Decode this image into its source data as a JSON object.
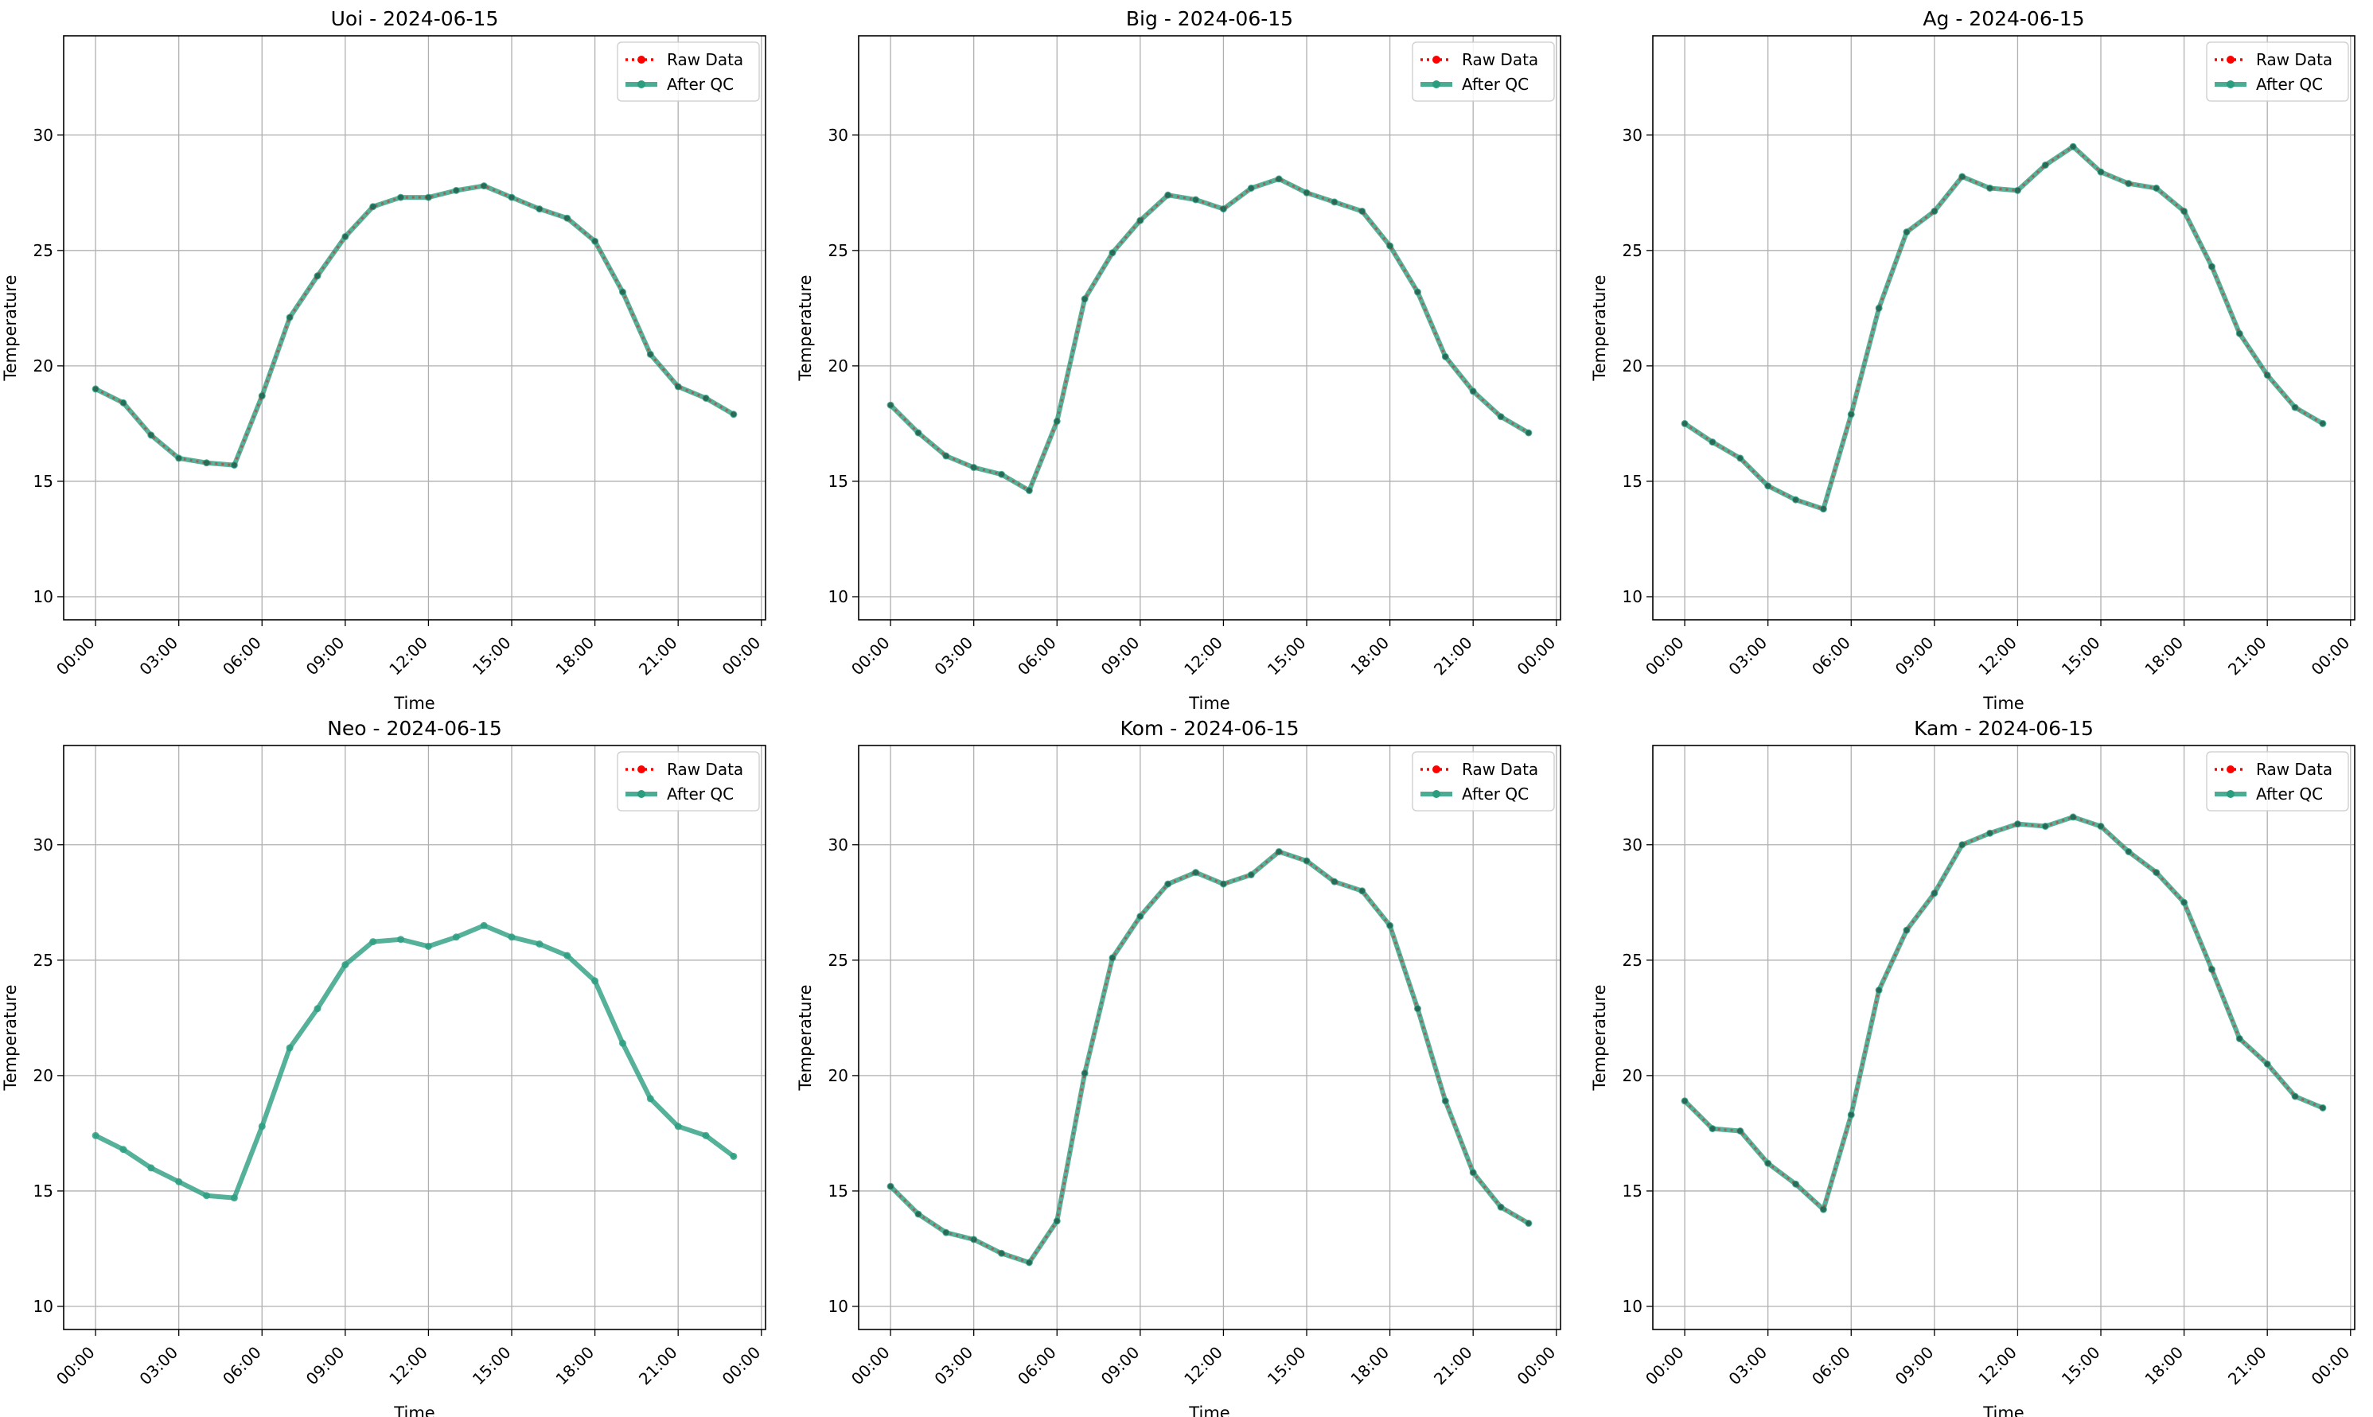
{
  "figure": {
    "colors": {
      "raw": "#ff0000",
      "after_qc": "#2a9d7f",
      "grid": "#b0b0b0",
      "axes": "#000000"
    }
  },
  "chart_data": [
    {
      "type": "line",
      "title": "Uoi - 2024-06-15",
      "xlabel": "Time",
      "ylabel": "Temperature",
      "xlim": [
        -1.15,
        24.15
      ],
      "ylim": [
        9,
        34.3
      ],
      "xticks": [
        0,
        3,
        6,
        9,
        12,
        15,
        18,
        21,
        24
      ],
      "xtick_labels": [
        "00:00",
        "03:00",
        "06:00",
        "09:00",
        "12:00",
        "15:00",
        "18:00",
        "21:00",
        "00:00"
      ],
      "yticks": [
        10,
        15,
        20,
        25,
        30
      ],
      "grid": true,
      "legend": "top-right",
      "x": [
        0,
        1,
        2,
        3,
        4,
        5,
        6,
        7,
        8,
        9,
        10,
        11,
        12,
        13,
        14,
        15,
        16,
        17,
        18,
        19,
        20,
        21,
        22,
        23
      ],
      "series": [
        {
          "name": "Raw Data",
          "style": "dotted",
          "values": [
            19.0,
            18.4,
            17.0,
            16.0,
            15.8,
            15.7,
            18.7,
            22.1,
            23.9,
            25.6,
            26.9,
            27.3,
            27.3,
            27.6,
            27.8,
            27.3,
            26.8,
            26.4,
            25.4,
            23.2,
            20.5,
            19.1,
            18.6,
            17.9
          ]
        },
        {
          "name": "After QC",
          "style": "solid",
          "values": [
            19.0,
            18.4,
            17.0,
            16.0,
            15.8,
            15.7,
            18.7,
            22.1,
            23.9,
            25.6,
            26.9,
            27.3,
            27.3,
            27.6,
            27.8,
            27.3,
            26.8,
            26.4,
            25.4,
            23.2,
            20.5,
            19.1,
            18.6,
            17.9
          ]
        }
      ]
    },
    {
      "type": "line",
      "title": "Big - 2024-06-15",
      "xlabel": "Time",
      "ylabel": "Temperature",
      "xlim": [
        -1.15,
        24.15
      ],
      "ylim": [
        9,
        34.3
      ],
      "xticks": [
        0,
        3,
        6,
        9,
        12,
        15,
        18,
        21,
        24
      ],
      "xtick_labels": [
        "00:00",
        "03:00",
        "06:00",
        "09:00",
        "12:00",
        "15:00",
        "18:00",
        "21:00",
        "00:00"
      ],
      "yticks": [
        10,
        15,
        20,
        25,
        30
      ],
      "grid": true,
      "legend": "top-right",
      "x": [
        0,
        1,
        2,
        3,
        4,
        5,
        6,
        7,
        8,
        9,
        10,
        11,
        12,
        13,
        14,
        15,
        16,
        17,
        18,
        19,
        20,
        21,
        22,
        23
      ],
      "series": [
        {
          "name": "Raw Data",
          "style": "dotted",
          "values": [
            18.3,
            17.1,
            16.1,
            15.6,
            15.3,
            14.6,
            17.6,
            22.9,
            24.9,
            26.3,
            27.4,
            27.2,
            26.8,
            27.7,
            28.1,
            27.5,
            27.1,
            26.7,
            25.2,
            23.2,
            20.4,
            18.9,
            17.8,
            17.1
          ]
        },
        {
          "name": "After QC",
          "style": "solid",
          "values": [
            18.3,
            17.1,
            16.1,
            15.6,
            15.3,
            14.6,
            17.6,
            22.9,
            24.9,
            26.3,
            27.4,
            27.2,
            26.8,
            27.7,
            28.1,
            27.5,
            27.1,
            26.7,
            25.2,
            23.2,
            20.4,
            18.9,
            17.8,
            17.1
          ]
        }
      ]
    },
    {
      "type": "line",
      "title": "Ag - 2024-06-15",
      "xlabel": "Time",
      "ylabel": "Temperature",
      "xlim": [
        -1.15,
        24.15
      ],
      "ylim": [
        9,
        34.3
      ],
      "xticks": [
        0,
        3,
        6,
        9,
        12,
        15,
        18,
        21,
        24
      ],
      "xtick_labels": [
        "00:00",
        "03:00",
        "06:00",
        "09:00",
        "12:00",
        "15:00",
        "18:00",
        "21:00",
        "00:00"
      ],
      "yticks": [
        10,
        15,
        20,
        25,
        30
      ],
      "grid": true,
      "legend": "top-right",
      "x": [
        0,
        1,
        2,
        3,
        4,
        5,
        6,
        7,
        8,
        9,
        10,
        11,
        12,
        13,
        14,
        15,
        16,
        17,
        18,
        19,
        20,
        21,
        22,
        23
      ],
      "series": [
        {
          "name": "Raw Data",
          "style": "dotted",
          "values": [
            17.5,
            16.7,
            16.0,
            14.8,
            14.2,
            13.8,
            17.9,
            22.5,
            25.8,
            26.7,
            28.2,
            27.7,
            27.6,
            28.7,
            29.5,
            28.4,
            27.9,
            27.7,
            26.7,
            24.3,
            21.4,
            19.6,
            18.2,
            17.5
          ]
        },
        {
          "name": "After QC",
          "style": "solid",
          "values": [
            17.5,
            16.7,
            16.0,
            14.8,
            14.2,
            13.8,
            17.9,
            22.5,
            25.8,
            26.7,
            28.2,
            27.7,
            27.6,
            28.7,
            29.5,
            28.4,
            27.9,
            27.7,
            26.7,
            24.3,
            21.4,
            19.6,
            18.2,
            17.5
          ]
        }
      ]
    },
    {
      "type": "line",
      "title": "Neo - 2024-06-15",
      "xlabel": "Time",
      "ylabel": "Temperature",
      "xlim": [
        -1.15,
        24.15
      ],
      "ylim": [
        9,
        34.3
      ],
      "xticks": [
        0,
        3,
        6,
        9,
        12,
        15,
        18,
        21,
        24
      ],
      "xtick_labels": [
        "00:00",
        "03:00",
        "06:00",
        "09:00",
        "12:00",
        "15:00",
        "18:00",
        "21:00",
        "00:00"
      ],
      "yticks": [
        10,
        15,
        20,
        25,
        30
      ],
      "grid": true,
      "legend": "top-right",
      "x": [
        0,
        1,
        2,
        3,
        4,
        5,
        6,
        7,
        8,
        9,
        10,
        11,
        12,
        13,
        14,
        15,
        16,
        17,
        18,
        19,
        20,
        21,
        22,
        23
      ],
      "series": [
        {
          "name": "Raw Data",
          "style": "dotted",
          "values": [
            17.4,
            16.8,
            16.0,
            15.4,
            14.8,
            14.7,
            17.8,
            21.2,
            22.9,
            24.8,
            25.8,
            25.9,
            25.6,
            26.0,
            26.5,
            26.0,
            25.7,
            25.2,
            24.1,
            21.4,
            19.0,
            17.8,
            17.4,
            16.5
          ]
        },
        {
          "name": "After QC",
          "style": "solid",
          "values": [
            17.4,
            16.8,
            16.0,
            15.4,
            14.8,
            14.7,
            17.8,
            21.2,
            22.9,
            24.8,
            25.8,
            25.9,
            25.6,
            26.0,
            26.5,
            26.0,
            25.7,
            25.2,
            24.1,
            21.4,
            19.0,
            17.8,
            17.4,
            16.5
          ]
        }
      ]
    },
    {
      "type": "line",
      "title": "Kom - 2024-06-15",
      "xlabel": "Time",
      "ylabel": "Temperature",
      "xlim": [
        -1.15,
        24.15
      ],
      "ylim": [
        9,
        34.3
      ],
      "xticks": [
        0,
        3,
        6,
        9,
        12,
        15,
        18,
        21,
        24
      ],
      "xtick_labels": [
        "00:00",
        "03:00",
        "06:00",
        "09:00",
        "12:00",
        "15:00",
        "18:00",
        "21:00",
        "00:00"
      ],
      "yticks": [
        10,
        15,
        20,
        25,
        30
      ],
      "grid": true,
      "legend": "top-right",
      "x": [
        0,
        1,
        2,
        3,
        4,
        5,
        6,
        7,
        8,
        9,
        10,
        11,
        12,
        13,
        14,
        15,
        16,
        17,
        18,
        19,
        20,
        21,
        22,
        23
      ],
      "series": [
        {
          "name": "Raw Data",
          "style": "dotted",
          "values": [
            15.2,
            14.0,
            13.2,
            12.9,
            12.3,
            11.9,
            13.7,
            20.1,
            25.1,
            26.9,
            28.3,
            28.8,
            28.3,
            28.7,
            29.7,
            29.3,
            28.4,
            28.0,
            26.5,
            22.9,
            18.9,
            15.8,
            14.3,
            13.6
          ]
        },
        {
          "name": "After QC",
          "style": "solid",
          "values": [
            15.2,
            14.0,
            13.2,
            12.9,
            12.3,
            11.9,
            13.7,
            20.1,
            25.1,
            26.9,
            28.3,
            28.8,
            28.3,
            28.7,
            29.7,
            29.3,
            28.4,
            28.0,
            26.5,
            22.9,
            18.9,
            15.8,
            14.3,
            13.6
          ]
        }
      ]
    },
    {
      "type": "line",
      "title": "Kam - 2024-06-15",
      "xlabel": "Time",
      "ylabel": "Temperature",
      "xlim": [
        -1.15,
        24.15
      ],
      "ylim": [
        9,
        34.3
      ],
      "xticks": [
        0,
        3,
        6,
        9,
        12,
        15,
        18,
        21,
        24
      ],
      "xtick_labels": [
        "00:00",
        "03:00",
        "06:00",
        "09:00",
        "12:00",
        "15:00",
        "18:00",
        "21:00",
        "00:00"
      ],
      "yticks": [
        10,
        15,
        20,
        25,
        30
      ],
      "grid": true,
      "legend": "top-right",
      "x": [
        0,
        1,
        2,
        3,
        4,
        5,
        6,
        7,
        8,
        9,
        10,
        11,
        12,
        13,
        14,
        15,
        16,
        17,
        18,
        19,
        20,
        21,
        22,
        23
      ],
      "series": [
        {
          "name": "Raw Data",
          "style": "dotted",
          "values": [
            18.9,
            17.7,
            17.6,
            16.2,
            15.3,
            14.2,
            18.3,
            23.7,
            26.3,
            27.9,
            30.0,
            30.5,
            30.9,
            30.8,
            31.2,
            30.8,
            29.7,
            28.8,
            27.5,
            24.6,
            21.6,
            20.5,
            19.1,
            18.6
          ]
        },
        {
          "name": "After QC",
          "style": "solid",
          "values": [
            18.9,
            17.7,
            17.6,
            16.2,
            15.3,
            14.2,
            18.3,
            23.7,
            26.3,
            27.9,
            30.0,
            30.5,
            30.9,
            30.8,
            31.2,
            30.8,
            29.7,
            28.8,
            27.5,
            24.6,
            21.6,
            20.5,
            19.1,
            18.6
          ]
        }
      ]
    }
  ]
}
